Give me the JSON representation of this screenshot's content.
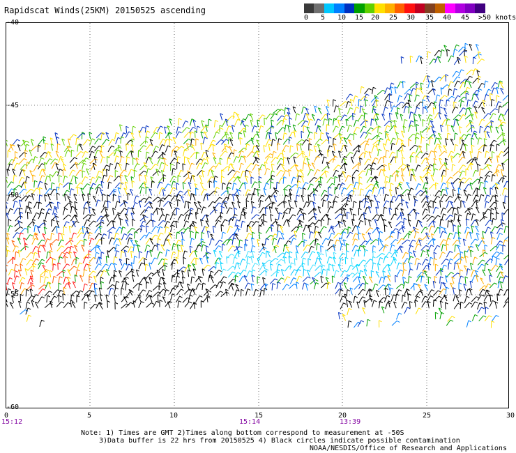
{
  "title": "Rapidscat Winds(25KM) 20150525 ascending",
  "legend": {
    "colors": [
      "#3a3a3a",
      "#707070",
      "#00c8ff",
      "#0080ff",
      "#0030c0",
      "#00a000",
      "#60d000",
      "#ffe000",
      "#ffb000",
      "#ff6000",
      "#ff1010",
      "#c00020",
      "#804020",
      "#c06000",
      "#ff00ff",
      "#b000e0",
      "#8000c0",
      "#400080"
    ],
    "labels": [
      "0",
      "5",
      "10",
      "15",
      "20",
      "25",
      "30",
      "35",
      "40",
      "45",
      ">50 knots"
    ]
  },
  "map": {
    "lat_labels": [
      "-40",
      "-45",
      "-50",
      "-55",
      "-60"
    ],
    "lon_labels": [
      "0",
      "5",
      "10",
      "15",
      "20",
      "25",
      "30"
    ],
    "timestamps": [
      "15:12",
      "15:14",
      "13:39"
    ]
  },
  "notes": {
    "line1": "Note: 1) Times are GMT 2)Times along bottom correspond to measurement at -50S",
    "line2": "3)Data buffer is 22 hrs from 20150525 4) Black circles indicate possible contamination",
    "credit": "NOAA/NESDIS/Office of Research and Applications"
  }
}
